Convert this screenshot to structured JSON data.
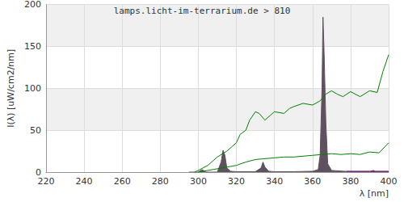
{
  "chart_data": {
    "type": "line",
    "title": "lamps.licht-im-terrarium.de > 810",
    "x_label": "λ [nm]",
    "y_label": "I(λ) [uW/cm2/nm]",
    "xlim": [
      220,
      400
    ],
    "xticks": [
      220,
      240,
      260,
      280,
      300,
      320,
      340,
      360,
      380,
      400
    ],
    "ylim": [
      0,
      200
    ],
    "yticks": [
      0,
      50,
      100,
      150,
      200
    ],
    "grid": true,
    "series": [
      {
        "type": "area",
        "color": "#5e525e",
        "x": [
          295,
          300,
          302,
          304,
          310,
          312,
          313,
          314,
          315,
          317,
          320,
          330,
          333,
          334,
          335,
          337,
          340,
          350,
          360,
          363,
          364,
          365,
          365.5,
          366,
          367,
          368,
          370,
          380,
          390,
          392,
          393,
          400
        ],
        "values": [
          0,
          0,
          3,
          0,
          0,
          12,
          26,
          20,
          5,
          1,
          0.5,
          0.5,
          5,
          12,
          6,
          1,
          0.5,
          0.5,
          1,
          3,
          20,
          100,
          185,
          150,
          60,
          10,
          2,
          0.5,
          0.5,
          2,
          0.5,
          0.5
        ]
      },
      {
        "type": "line",
        "color": "#008000",
        "x": [
          298,
          300,
          305,
          310,
          315,
          320,
          322,
          325,
          327,
          330,
          332,
          335,
          338,
          340,
          345,
          348,
          350,
          355,
          360,
          364,
          367,
          370,
          373,
          376,
          380,
          385,
          390,
          394,
          397,
          400
        ],
        "values": [
          0,
          2,
          8,
          18,
          25,
          35,
          45,
          50,
          62,
          72,
          70,
          62,
          68,
          72,
          70,
          76,
          78,
          82,
          80,
          85,
          93,
          97,
          93,
          90,
          96,
          90,
          97,
          95,
          120,
          140
        ]
      },
      {
        "type": "line",
        "color": "#008000",
        "x": [
          300,
          305,
          310,
          315,
          320,
          325,
          330,
          335,
          340,
          345,
          350,
          355,
          360,
          365,
          370,
          375,
          380,
          385,
          390,
          395,
          400
        ],
        "values": [
          0,
          2,
          4,
          6,
          8,
          12,
          15,
          16,
          17,
          18,
          18,
          19,
          20,
          21,
          22,
          21,
          22,
          21,
          24,
          23,
          35
        ]
      },
      {
        "type": "line",
        "color": "#800080",
        "x": [
          378,
          385,
          390,
          395,
          400
        ],
        "values": [
          1,
          1,
          1,
          1,
          1
        ]
      }
    ]
  }
}
